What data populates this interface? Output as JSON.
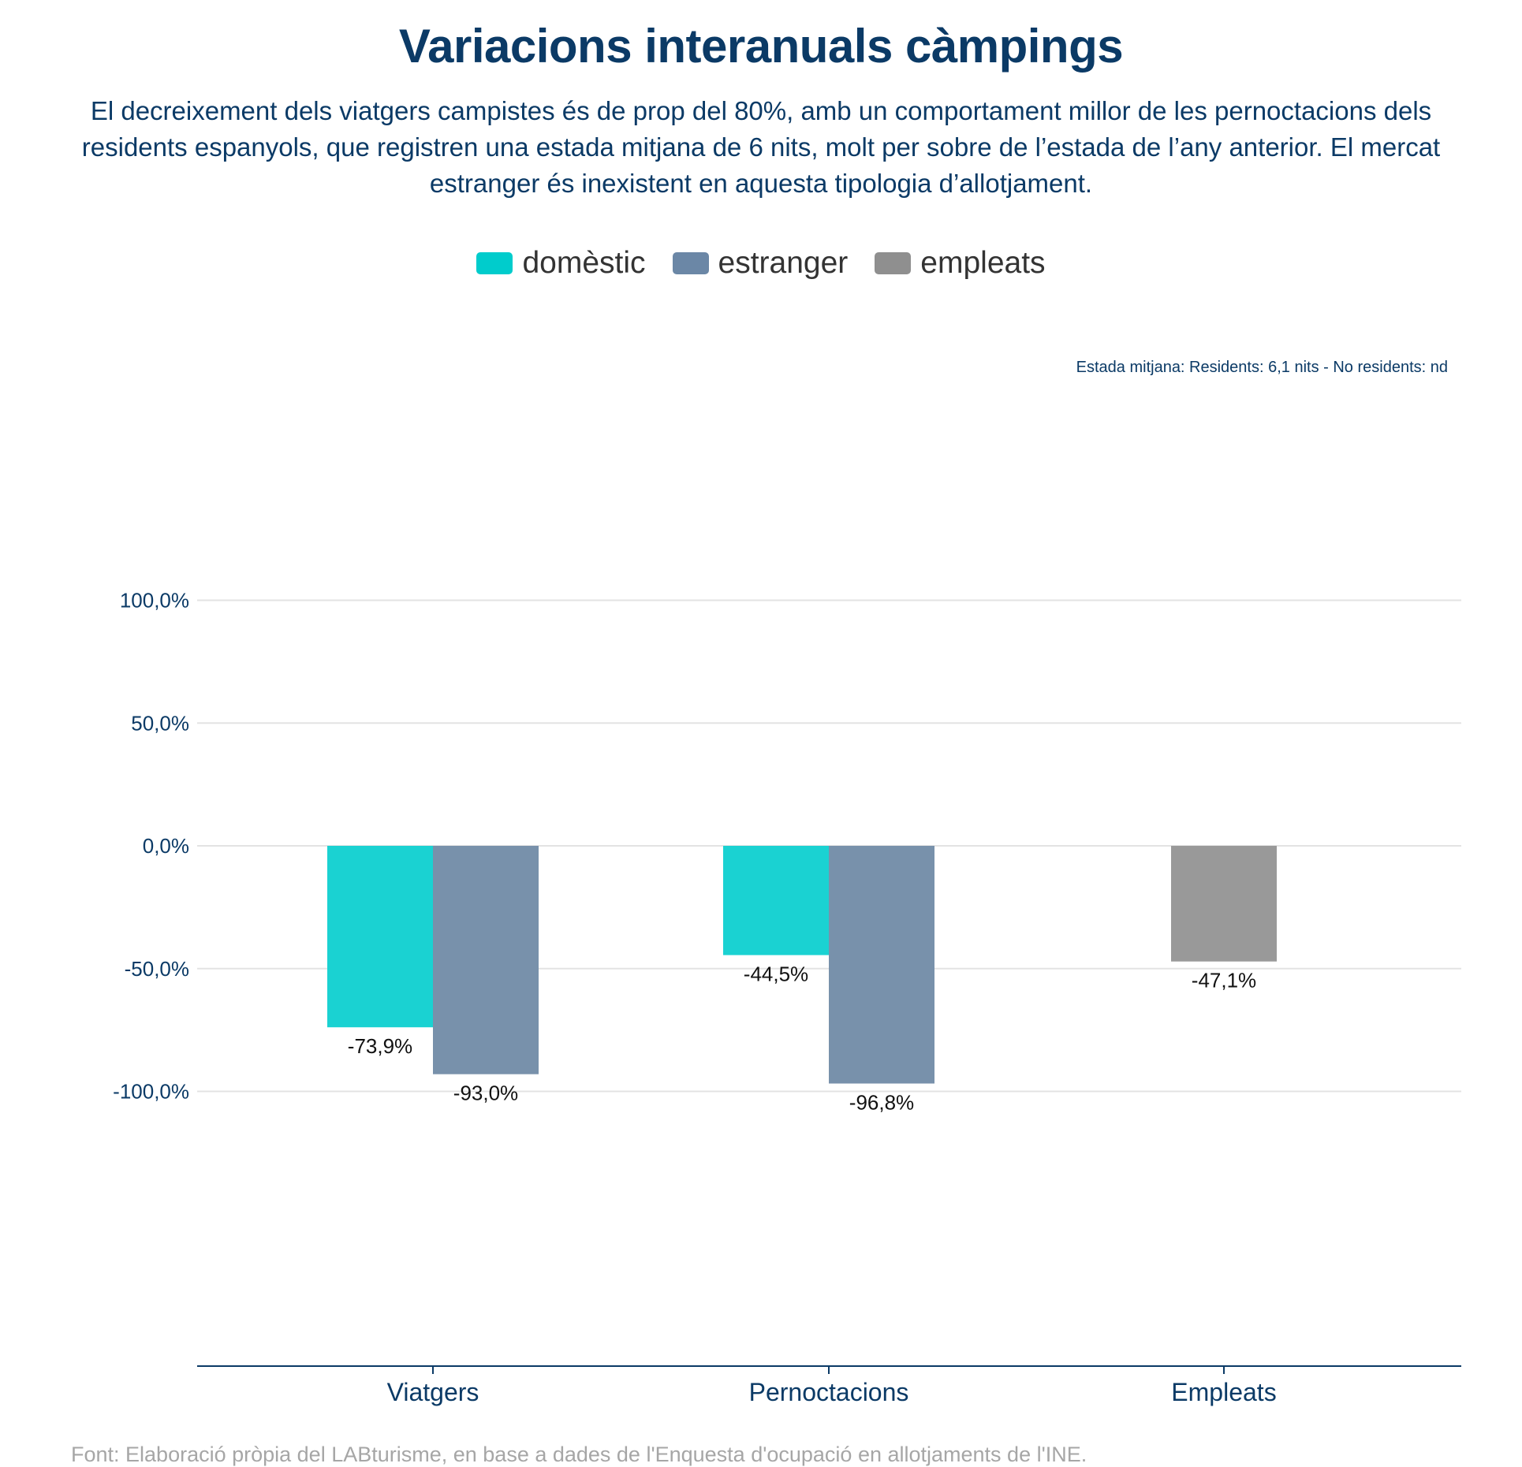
{
  "title": "Variacions interanuals càmpings",
  "subtitle": "El decreixement dels viatgers campistes és de prop del 80%, amb un comportament millor de les pernoctacions dels residents espanyols, que registren una estada mitjana de 6 nits, molt per sobre de l’estada de l’any anterior. El mercat estranger és inexistent en aquesta tipologia d’allotjament.",
  "annotation": "Estada mitjana: Residents: 6,1 nits - No residents: nd",
  "source": "Font: Elaboració pròpia del LABturisme, en base a dades de l'Enquesta d'ocupació en allotjaments de l'INE.",
  "legend": [
    {
      "name": "domèstic",
      "color": "#00cccc"
    },
    {
      "name": "estranger",
      "color": "#6b87a6"
    },
    {
      "name": "empleats",
      "color": "#8f8f8f"
    }
  ],
  "chart_data": {
    "type": "bar",
    "categories": [
      "Viatgers",
      "Pernoctacions",
      "Empleats"
    ],
    "series": [
      {
        "name": "domèstic",
        "color": "#1ad2d2",
        "values": [
          -73.9,
          -44.5,
          null
        ],
        "labels": [
          "-73,9%",
          "-44,5%",
          null
        ]
      },
      {
        "name": "estranger",
        "color": "#7891ab",
        "values": [
          -93.0,
          -96.8,
          null
        ],
        "labels": [
          "-93,0%",
          "-96,8%",
          null
        ]
      },
      {
        "name": "empleats",
        "color": "#999999",
        "values": [
          null,
          null,
          -47.1
        ],
        "labels": [
          null,
          null,
          "-47,1%"
        ]
      }
    ],
    "ylim": [
      -105,
      100
    ],
    "yticks": [
      100,
      50,
      0,
      -50,
      -100
    ],
    "ytick_labels": [
      "100,0%",
      "50,0%",
      "0,0%",
      "-50,0%",
      "-100,0%"
    ],
    "grid": true,
    "legend_position": "top-center"
  }
}
